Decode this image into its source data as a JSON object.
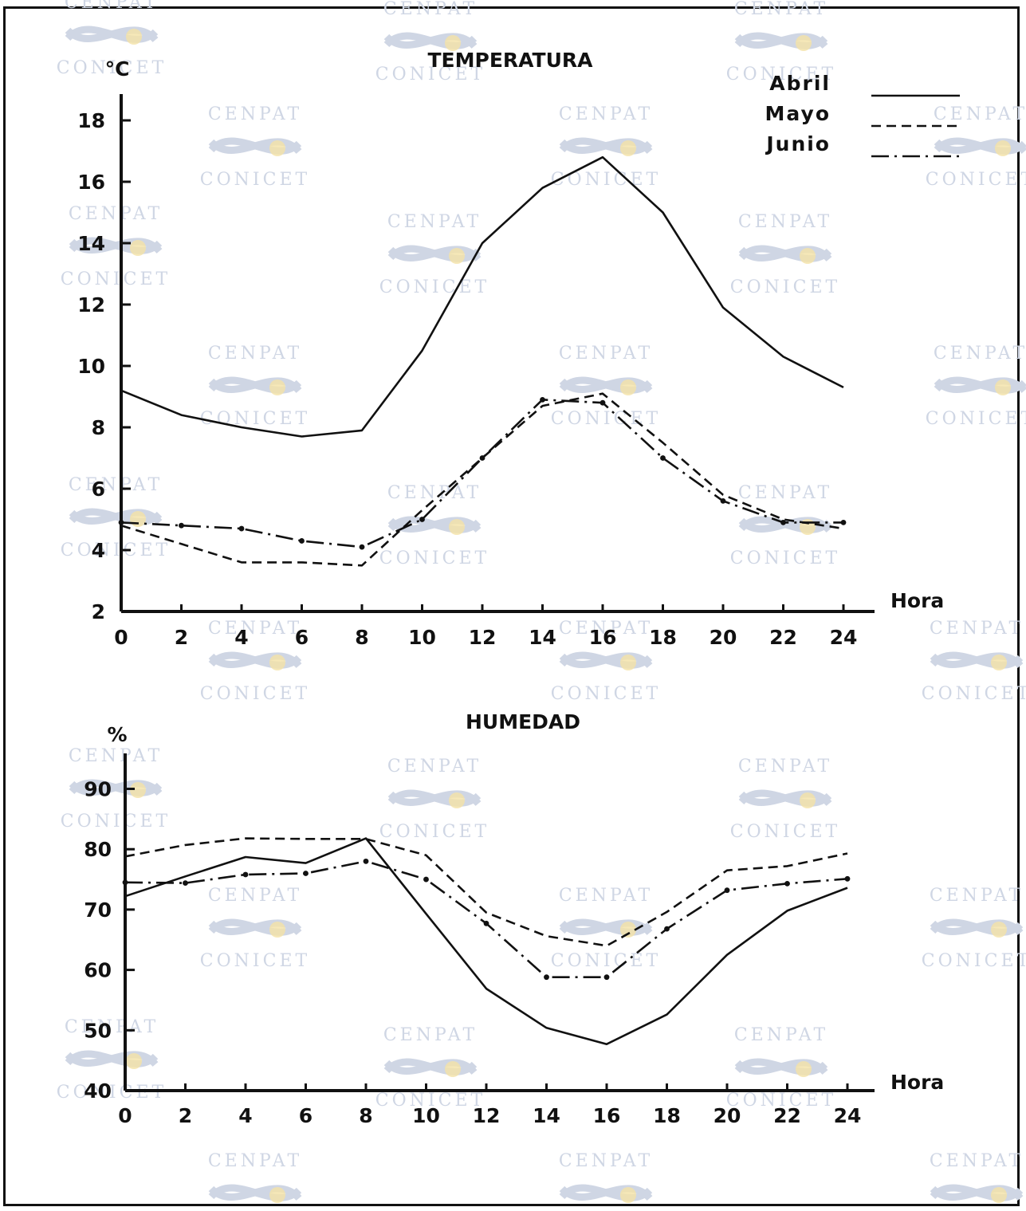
{
  "watermark": {
    "top": "CENPAT",
    "bottom": "CONICET"
  },
  "colors": {
    "ink": "#111111",
    "watermark": "#cfd6e4",
    "watermark_sun": "#f4e2a6"
  },
  "chart_data": [
    {
      "type": "line",
      "title": "TEMPERATURA",
      "ylabel": "°C",
      "xlabel": "Hora",
      "x": [
        0,
        2,
        4,
        6,
        8,
        10,
        12,
        14,
        16,
        18,
        20,
        22,
        24
      ],
      "x_ticks": [
        "0",
        "2",
        "4",
        "6",
        "8",
        "10",
        "12",
        "14",
        "16",
        "18",
        "20",
        "22",
        "24"
      ],
      "y_ticks": [
        "2",
        "4",
        "6",
        "8",
        "10",
        "12",
        "14",
        "16",
        "18"
      ],
      "ylim": [
        2,
        19.5
      ],
      "xlim": [
        0,
        25
      ],
      "legend": "top-right",
      "series": [
        {
          "name": "Abril",
          "style": "solid",
          "values": [
            9.2,
            8.4,
            8.0,
            7.7,
            7.9,
            10.5,
            14.0,
            15.8,
            16.8,
            15.0,
            11.9,
            10.3,
            9.3
          ]
        },
        {
          "name": "Mayo",
          "style": "dashed",
          "values": [
            4.8,
            4.2,
            3.6,
            3.6,
            3.5,
            5.3,
            7.0,
            8.7,
            9.1,
            7.5,
            5.8,
            5.0,
            4.7
          ]
        },
        {
          "name": "Junio",
          "style": "dash-dot",
          "values": [
            4.9,
            4.8,
            4.7,
            4.3,
            4.1,
            5.0,
            7.0,
            8.9,
            8.8,
            7.0,
            5.6,
            4.9,
            4.9
          ]
        }
      ]
    },
    {
      "type": "line",
      "title": "HUMEDAD",
      "ylabel": "%",
      "xlabel": "Hora",
      "x": [
        0,
        2,
        4,
        6,
        8,
        10,
        12,
        14,
        16,
        18,
        20,
        22,
        24
      ],
      "x_ticks": [
        "0",
        "2",
        "4",
        "6",
        "8",
        "10",
        "12",
        "14",
        "16",
        "18",
        "20",
        "22",
        "24"
      ],
      "y_ticks": [
        "40",
        "50",
        "60",
        "70",
        "80",
        "90"
      ],
      "ylim": [
        40,
        93
      ],
      "xlim": [
        0,
        25
      ],
      "series": [
        {
          "name": "Abril",
          "style": "solid",
          "values": [
            72.2,
            75.5,
            78.7,
            77.7,
            81.8,
            69.3,
            56.9,
            50.4,
            47.7,
            52.6,
            62.5,
            69.8,
            73.6
          ]
        },
        {
          "name": "Mayo",
          "style": "dashed",
          "values": [
            78.8,
            80.7,
            81.8,
            81.7,
            81.7,
            79.0,
            69.5,
            65.6,
            64.0,
            69.6,
            76.5,
            77.2,
            79.3
          ]
        },
        {
          "name": "Junio",
          "style": "dash-dot",
          "values": [
            74.5,
            74.4,
            75.8,
            76.0,
            78.0,
            75.0,
            67.7,
            58.8,
            58.8,
            66.8,
            73.2,
            74.3,
            75.1
          ]
        }
      ]
    }
  ]
}
